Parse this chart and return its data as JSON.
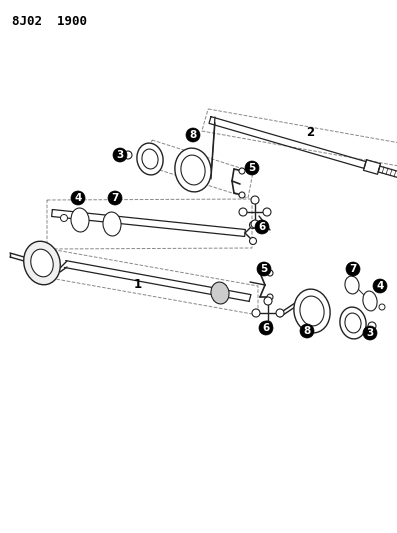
{
  "title": "8J02  1900",
  "bg_color": "#ffffff",
  "figsize": [
    3.97,
    5.33
  ],
  "dpi": 100,
  "title_fontsize": 9,
  "title_fontweight": "bold",
  "line_color": "#222222",
  "line_width": 0.9,
  "dashed_color": "#888888",
  "dashed_lw": 0.7
}
